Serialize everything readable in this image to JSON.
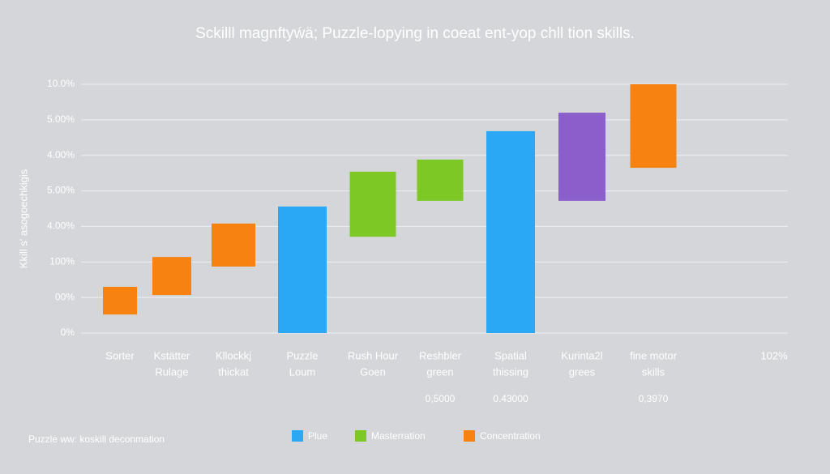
{
  "chart_data": {
    "type": "floating-bar",
    "title": "Sckilll magnftyẃä; Puzzle-lopying in coeat ent-yop chll tion skills.",
    "y_label": "Kkill s' asogoechkigis",
    "footnote": "Puzzle ww: koskill deconmation",
    "categories": [
      [
        "Sorter"
      ],
      [
        "Kstätter",
        "Rulage"
      ],
      [
        "Kllockkj",
        "thickat"
      ],
      [
        "Puzzle",
        "Loum"
      ],
      [
        "Rush Hour",
        "Goen"
      ],
      [
        "Reshbler",
        "green"
      ],
      [
        "Spatial",
        "thissing"
      ],
      [
        "Kurinta2l",
        "grees"
      ],
      [
        "fine motor",
        "skills"
      ]
    ],
    "low": [
      0.52,
      1.07,
      1.87,
      0,
      2.71,
      3.72,
      0,
      3.72,
      4.65
    ],
    "high": [
      1.3,
      2.14,
      3.08,
      3.56,
      4.54,
      4.88,
      5.68,
      6.2,
      7.0
    ],
    "colors": [
      "#f7820f",
      "#f7820f",
      "#f7820f",
      "#2aa7f5",
      "#7dc824",
      "#7dc824",
      "#2aa7f5",
      "#8a5fcb",
      "#f7820f"
    ],
    "sublabels": [
      null,
      null,
      null,
      null,
      null,
      "0,5000",
      "0.43000",
      null,
      "0,3970"
    ],
    "extra_x_label": "102%",
    "ylim": [
      0,
      7
    ],
    "yticks": [
      {
        "value": 0,
        "label": "0%"
      },
      {
        "value": 1,
        "label": "00%"
      },
      {
        "value": 2,
        "label": "100%"
      },
      {
        "value": 3,
        "label": "4.00%"
      },
      {
        "value": 4,
        "label": "5.00%"
      },
      {
        "value": 5,
        "label": "4.00%"
      },
      {
        "value": 6,
        "label": "5.00%"
      },
      {
        "value": 7,
        "label": "10.0%"
      }
    ],
    "grid": true,
    "legend": [
      {
        "name": "Plue",
        "color": "#2aa7f5"
      },
      {
        "name": "Masterration",
        "color": "#7dc824"
      },
      {
        "name": "Concentration",
        "color": "#f7820f"
      }
    ]
  }
}
